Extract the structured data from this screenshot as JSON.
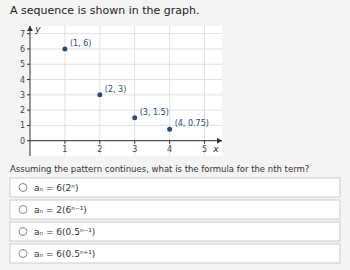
{
  "chart_data": {
    "type": "scatter",
    "title": "A sequence is shown in the graph.",
    "x": [
      1,
      2,
      3,
      4
    ],
    "values": [
      6,
      3,
      1.5,
      0.75
    ],
    "value_labels": [
      "(1, 6)",
      "(2, 3)",
      "(3, 1.5)",
      "(4, 0.75)"
    ],
    "data_labels": true,
    "color": "#2e4a7a",
    "xlim": [
      0,
      5.5
    ],
    "ylim": [
      -1,
      7.5
    ],
    "xticks": [
      1,
      2,
      3,
      4,
      5
    ],
    "yticks": [
      0,
      1,
      2,
      3,
      4,
      5,
      6,
      7
    ],
    "grid": true,
    "x_label": "x",
    "y_label": "y",
    "annotations": [
      "Assuming the pattern continues, what is the formula for the nth term?"
    ],
    "choices": [
      "aₙ = 6(2ⁿ)",
      "aₙ = 2(6ⁿ⁻¹)",
      "aₙ = 6(0.5ⁿ⁻¹)",
      "aₙ = 6(0.5ⁿ⁺¹)"
    ]
  }
}
